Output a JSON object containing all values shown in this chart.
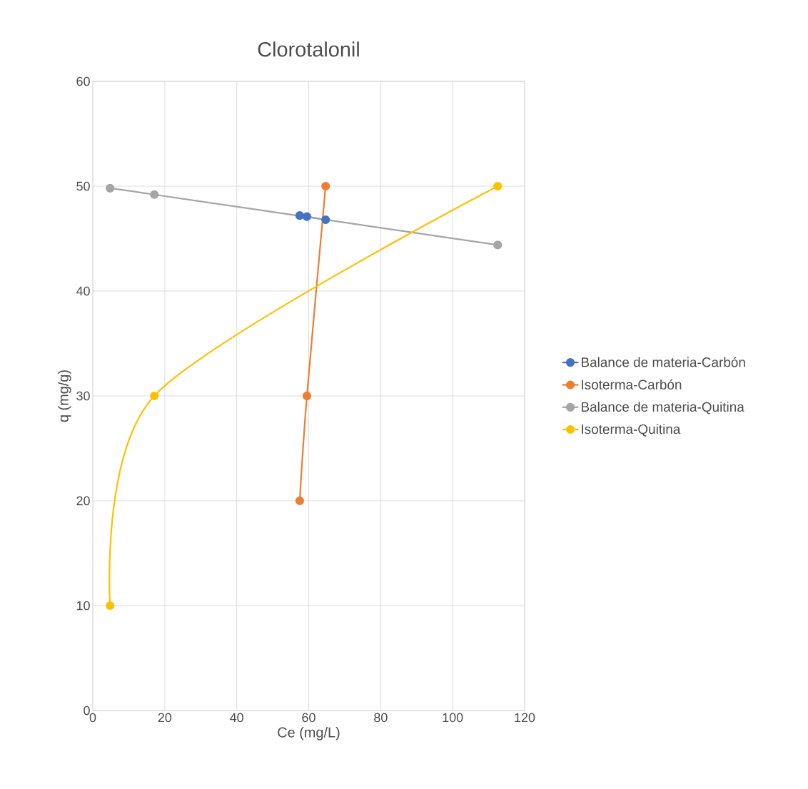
{
  "chart_data": {
    "type": "line",
    "title": "Clorotalonil",
    "xlabel": "Ce (mg/L)",
    "ylabel": "q (mg/g)",
    "xlim": [
      0,
      120
    ],
    "xticks": [
      0,
      20,
      40,
      60,
      80,
      100,
      120
    ],
    "ylim": [
      0,
      60
    ],
    "yticks": [
      0,
      10,
      20,
      30,
      40,
      50,
      60
    ],
    "grid": true,
    "legend": "right",
    "marker": "circle",
    "series": [
      {
        "name": "Balance de materia-Carbón",
        "color": "#4472c4",
        "x": [
          57.5,
          59.5,
          64.7
        ],
        "values": [
          47.2,
          47.1,
          46.8
        ]
      },
      {
        "name": "Isoterma-Carbón",
        "color": "#ed7d31",
        "x": [
          57.5,
          59.5,
          64.7
        ],
        "values": [
          20,
          30,
          50
        ]
      },
      {
        "name": "Balance de materia-Quitina",
        "color": "#a5a5a5",
        "x": [
          4.8,
          17.1,
          112.5
        ],
        "values": [
          49.8,
          49.2,
          44.4
        ]
      },
      {
        "name": "Isoterma-Quitina",
        "color": "#ffc000",
        "x": [
          4.8,
          17.1,
          112.5
        ],
        "values": [
          10,
          30,
          50
        ]
      }
    ]
  }
}
